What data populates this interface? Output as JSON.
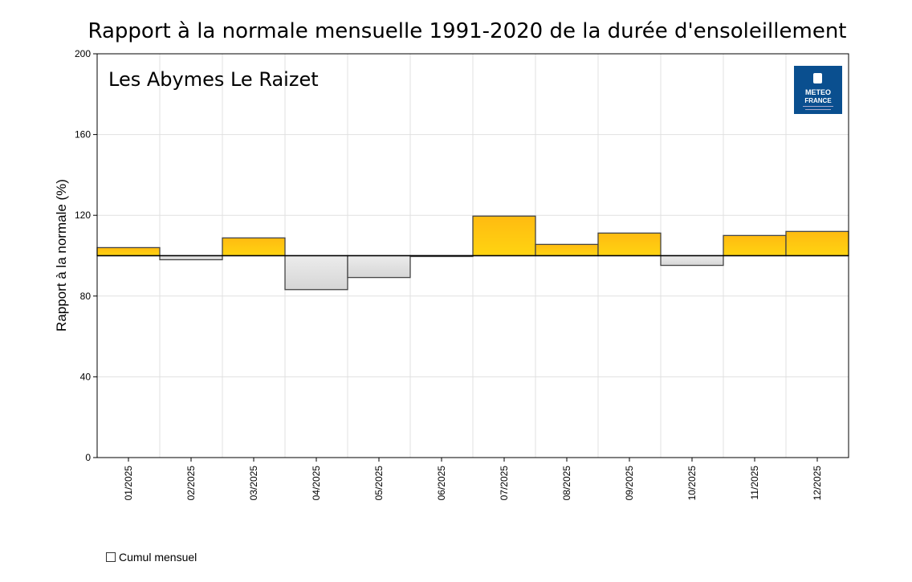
{
  "chart_data": {
    "type": "bar",
    "title": "Rapport à la normale mensuelle 1991-2020 de la durée d'ensoleillement",
    "subtitle": "Les Abymes Le Raizet",
    "ylabel": "Rapport à la normale (%)",
    "xlabel": "",
    "ylim": [
      0,
      200
    ],
    "yticks": [
      0,
      40,
      80,
      120,
      160,
      200
    ],
    "baseline": 100,
    "grid": true,
    "categories": [
      "01/2025",
      "02/2025",
      "03/2025",
      "04/2025",
      "05/2025",
      "06/2025",
      "07/2025",
      "08/2025",
      "09/2025",
      "10/2025",
      "11/2025",
      "12/2025"
    ],
    "series": [
      {
        "name": "Cumul mensuel",
        "values": [
          104,
          98,
          108.8,
          83.2,
          89.2,
          99.6,
          119.6,
          105.6,
          111.2,
          95.2,
          110,
          112
        ]
      }
    ],
    "colors": {
      "above": "#ffcc11",
      "below": "#e4e4e4",
      "outline": "#444444"
    },
    "legend_position": "bottom-left"
  },
  "logo": {
    "line1": "METEO",
    "line2": "FRANCE",
    "color": "#0a4f8f"
  }
}
